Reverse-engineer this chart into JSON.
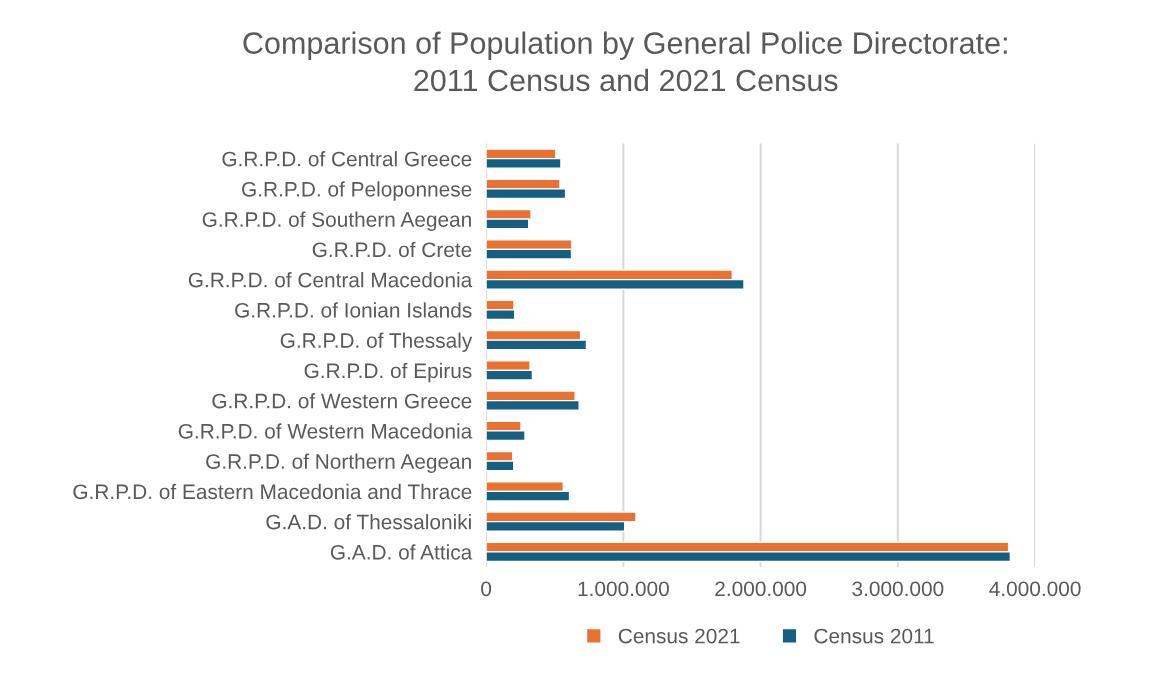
{
  "chart_data": {
    "type": "bar",
    "orientation": "horizontal",
    "title": "Comparison of Population by General Police Directorate:\n2011 Census and 2021 Census",
    "categories": [
      "G.R.P.D. of Central Greece",
      "G.R.P.D. of Peloponnese",
      "G.R.P.D. of Southern Aegean",
      "G.R.P.D. of Crete",
      "G.R.P.D. of Central Macedonia",
      "G.R.P.D. of Ionian Islands",
      "G.R.P.D. of Thessaly",
      "G.R.P.D. of Epirus",
      "G.R.P.D. of Western Greece",
      "G.R.P.D. of Western Macedonia",
      "G.R.P.D. of Northern Aegean",
      "G.R.P.D. of Eastern Macedonia and Thrace",
      "G.A.D. of Thessaloniki",
      "G.A.D. of Attica"
    ],
    "series": [
      {
        "name": "Census 2021",
        "color": "#e97132",
        "values": [
          508000,
          538000,
          327000,
          625000,
          1794000,
          203000,
          688000,
          320000,
          649000,
          254000,
          194000,
          562000,
          1092000,
          3807000
        ]
      },
      {
        "name": "Census 2011",
        "color": "#156082",
        "values": [
          545000,
          579000,
          310000,
          622000,
          1879000,
          208000,
          731000,
          337000,
          678000,
          283000,
          201000,
          608000,
          1010000,
          3820000
        ]
      }
    ],
    "xlim": [
      0,
      4000000
    ],
    "xticks": [
      0,
      {
        "value": 1000000,
        "label": "1.000.000"
      },
      {
        "value": 2000000,
        "label": "2.000.000"
      },
      {
        "value": 3000000,
        "label": "3.000.000"
      },
      {
        "value": 4000000,
        "label": "4.000.000"
      }
    ],
    "grid": "x",
    "legend": "bottom"
  }
}
